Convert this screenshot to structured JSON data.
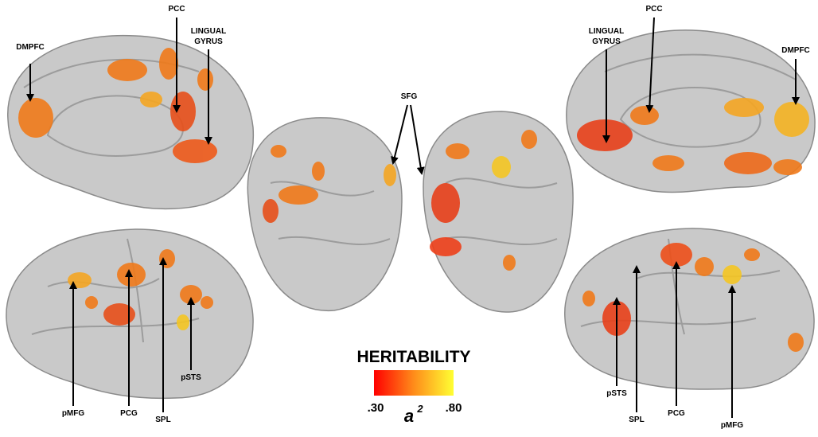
{
  "panels": {
    "medial_left": {
      "labels": [
        {
          "lines": [
            "DMPFC"
          ]
        },
        {
          "lines": [
            "PCC"
          ]
        },
        {
          "lines": [
            "LINGUAL",
            "GYRUS"
          ]
        }
      ]
    },
    "medial_right": {
      "labels": [
        {
          "lines": [
            "LINGUAL",
            "GYRUS"
          ]
        },
        {
          "lines": [
            "PCC"
          ]
        },
        {
          "lines": [
            "DMPFC"
          ]
        }
      ]
    },
    "posterior": {
      "labels": [
        {
          "lines": [
            "SFG"
          ]
        }
      ]
    },
    "lateral_left": {
      "labels": [
        {
          "lines": [
            "pMFG"
          ]
        },
        {
          "lines": [
            "PCG"
          ]
        },
        {
          "lines": [
            "SPL"
          ]
        },
        {
          "lines": [
            "pSTS"
          ]
        }
      ]
    },
    "lateral_right": {
      "labels": [
        {
          "lines": [
            "pSTS"
          ]
        },
        {
          "lines": [
            "SPL"
          ]
        },
        {
          "lines": [
            "PCG"
          ]
        },
        {
          "lines": [
            "pMFG"
          ]
        }
      ]
    }
  },
  "legend": {
    "title": "HERITABILITY",
    "min_label": ".30",
    "max_label": ".80",
    "symbol": "a",
    "exponent": "2"
  }
}
